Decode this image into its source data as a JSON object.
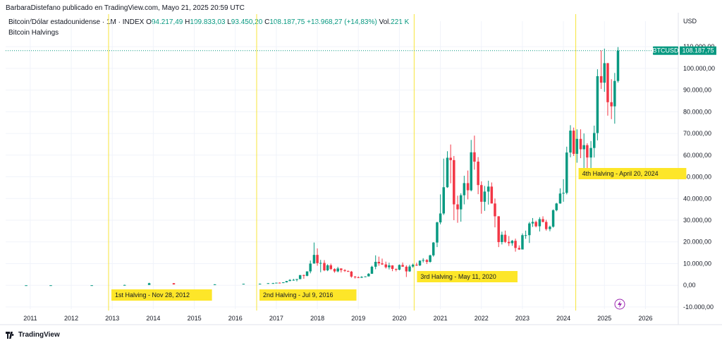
{
  "header": {
    "credit": "BarbaraDistefano publicado en TradingView.com, Mayo 21, 2025 20:59 UTC",
    "symbol_desc": "Bitcoin/Dólar estadounidense · 1M · INDEX",
    "open_label": "O",
    "open_value": "94.217,49",
    "high_label": "H",
    "high_value": "109.833,03",
    "low_label": "L",
    "low_value": "93.450,20",
    "close_label": "C",
    "close_value": "108.187,75",
    "change_value": "+13.968,27 (+14,83%)",
    "vol_label": "Vol.",
    "vol_value": "221 K",
    "indicator": "Bitcoin Halvings",
    "currency": "USD"
  },
  "footer": {
    "brand": "TradingView"
  },
  "colors": {
    "up": "#089981",
    "down": "#f23645",
    "halving_line": "#f7e43a",
    "label_bg": "#fde629",
    "grid": "#f0f3fa"
  },
  "chart_data": {
    "type": "candlestick",
    "x_ticks": [
      "2011",
      "2012",
      "2013",
      "2014",
      "2015",
      "2016",
      "2017",
      "2018",
      "2019",
      "2020",
      "2021",
      "2022",
      "2023",
      "2024",
      "2025",
      "2026"
    ],
    "y_ticks": [
      "-10.000,00",
      "0,00",
      "10.000,00",
      "20.000,00",
      "30.000,00",
      "40.000,00",
      "50.000,00",
      "60.000,00",
      "70.000,00",
      "80.000,00",
      "90.000,00",
      "100.000,00",
      "110.000,00"
    ],
    "y_tick_values": [
      -10000,
      0,
      10000,
      20000,
      30000,
      40000,
      50000,
      60000,
      70000,
      80000,
      90000,
      100000,
      110000
    ],
    "ylim": [
      -11000,
      112000
    ],
    "xlim": [
      2010.4,
      2026.8
    ],
    "last_price_label": "BTCUSD",
    "last_price": "108.187,75",
    "last_price_value": 108187.75,
    "halvings": [
      {
        "date": 2012.91,
        "label": "1st Halving - Nov 28, 2012"
      },
      {
        "date": 2016.52,
        "label": "2nd Halving - Jul 9, 2016"
      },
      {
        "date": 2020.36,
        "label": "3rd Halving - May 11, 2020"
      },
      {
        "date": 2024.3,
        "label": "4th Halving - April 20, 2024"
      }
    ],
    "candles": [
      [
        2010.9,
        0.3,
        0.3,
        0.3,
        0.3
      ],
      [
        2011.5,
        0.3,
        30,
        0.3,
        5
      ],
      [
        2012.5,
        5,
        15,
        4,
        12
      ],
      [
        2013.3,
        13,
        260,
        13,
        140
      ],
      [
        2013.9,
        140,
        1150,
        400,
        950
      ],
      [
        2014.5,
        950,
        1000,
        350,
        380
      ],
      [
        2015.5,
        380,
        480,
        180,
        420
      ],
      [
        2016.2,
        430,
        700,
        400,
        680
      ],
      [
        2016.6,
        650,
        780,
        480,
        700
      ],
      [
        2016.8,
        700,
        980,
        700,
        960
      ],
      [
        2016.92,
        960,
        1100,
        750,
        980
      ],
      [
        2017.0,
        980,
        1200,
        900,
        1180
      ],
      [
        2017.08,
        1180,
        1300,
        900,
        1080
      ],
      [
        2017.17,
        1080,
        1400,
        1000,
        1350
      ],
      [
        2017.25,
        1350,
        2000,
        1300,
        1950
      ],
      [
        2017.33,
        1950,
        2800,
        1900,
        2450
      ],
      [
        2017.42,
        2450,
        2950,
        2100,
        2500
      ],
      [
        2017.5,
        2500,
        2900,
        1800,
        2850
      ],
      [
        2017.58,
        2850,
        4700,
        2750,
        4700
      ],
      [
        2017.67,
        4700,
        4900,
        3000,
        4350
      ],
      [
        2017.75,
        4350,
        6400,
        4150,
        6400
      ],
      [
        2017.83,
        6400,
        11400,
        5500,
        10000
      ],
      [
        2017.92,
        10000,
        19700,
        10000,
        14000
      ],
      [
        2018.0,
        14000,
        17000,
        9000,
        10200
      ],
      [
        2018.08,
        10200,
        11700,
        6000,
        10300
      ],
      [
        2018.17,
        10300,
        11600,
        6500,
        6900
      ],
      [
        2018.25,
        6900,
        9700,
        6500,
        9200
      ],
      [
        2018.33,
        9200,
        10000,
        7000,
        7500
      ],
      [
        2018.42,
        7500,
        7800,
        5800,
        6400
      ],
      [
        2018.5,
        6400,
        8500,
        6000,
        7750
      ],
      [
        2018.58,
        7750,
        7800,
        5900,
        7000
      ],
      [
        2018.67,
        7000,
        7400,
        6150,
        6600
      ],
      [
        2018.75,
        6600,
        6800,
        6100,
        6300
      ],
      [
        2018.83,
        6300,
        6600,
        3500,
        4000
      ],
      [
        2018.92,
        4000,
        4250,
        3100,
        3700
      ],
      [
        2019.0,
        3700,
        4100,
        3300,
        3450
      ],
      [
        2019.08,
        3450,
        4200,
        3400,
        3850
      ],
      [
        2019.17,
        3850,
        4100,
        3700,
        4100
      ],
      [
        2019.25,
        4100,
        5600,
        4050,
        5300
      ],
      [
        2019.33,
        5300,
        9000,
        5300,
        8550
      ],
      [
        2019.42,
        8550,
        13800,
        7400,
        10800
      ],
      [
        2019.5,
        10800,
        13200,
        9000,
        10100
      ],
      [
        2019.58,
        10100,
        12300,
        9400,
        9600
      ],
      [
        2019.67,
        9600,
        10900,
        7700,
        8300
      ],
      [
        2019.75,
        8300,
        10400,
        7300,
        9150
      ],
      [
        2019.83,
        9150,
        9250,
        6500,
        7550
      ],
      [
        2019.92,
        7550,
        7700,
        6400,
        7200
      ],
      [
        2020.0,
        7200,
        9600,
        6900,
        9350
      ],
      [
        2020.08,
        9350,
        10500,
        8500,
        8550
      ],
      [
        2020.17,
        8550,
        9200,
        3800,
        6400
      ],
      [
        2020.25,
        6400,
        9450,
        6150,
        8650
      ],
      [
        2020.33,
        8650,
        10000,
        8100,
        9450
      ],
      [
        2020.42,
        9450,
        10400,
        8900,
        9150
      ],
      [
        2020.5,
        9150,
        11450,
        8900,
        11350
      ],
      [
        2020.58,
        11350,
        12500,
        10500,
        11650
      ],
      [
        2020.67,
        11650,
        12050,
        9800,
        10800
      ],
      [
        2020.75,
        10800,
        14100,
        10400,
        13800
      ],
      [
        2020.83,
        13800,
        19900,
        13200,
        19700
      ],
      [
        2020.92,
        19700,
        29300,
        17600,
        29000
      ],
      [
        2021.0,
        29000,
        41900,
        28100,
        33100
      ],
      [
        2021.08,
        33100,
        58400,
        32400,
        45200
      ],
      [
        2021.17,
        45200,
        61800,
        44900,
        58800
      ],
      [
        2021.25,
        58800,
        64900,
        47000,
        57700
      ],
      [
        2021.33,
        57700,
        59600,
        30000,
        37300
      ],
      [
        2021.42,
        37300,
        41300,
        28800,
        35000
      ],
      [
        2021.5,
        35000,
        42400,
        29300,
        41500
      ],
      [
        2021.58,
        41500,
        50500,
        37300,
        47100
      ],
      [
        2021.67,
        47100,
        52900,
        39600,
        43800
      ],
      [
        2021.75,
        43800,
        67000,
        43300,
        61300
      ],
      [
        2021.83,
        61300,
        69000,
        53300,
        57000
      ],
      [
        2021.92,
        57000,
        59100,
        42000,
        46200
      ],
      [
        2022.0,
        46200,
        47900,
        33000,
        38500
      ],
      [
        2022.08,
        38500,
        45800,
        34300,
        43200
      ],
      [
        2022.17,
        43200,
        48200,
        37200,
        45500
      ],
      [
        2022.25,
        45500,
        47400,
        37700,
        37700
      ],
      [
        2022.33,
        37700,
        40000,
        26700,
        31800
      ],
      [
        2022.42,
        31800,
        31900,
        17600,
        19900
      ],
      [
        2022.5,
        19900,
        24700,
        18800,
        23300
      ],
      [
        2022.58,
        23300,
        25200,
        19500,
        20000
      ],
      [
        2022.67,
        20000,
        22700,
        18100,
        19400
      ],
      [
        2022.75,
        19400,
        20900,
        18200,
        20500
      ],
      [
        2022.83,
        20500,
        21500,
        15500,
        17200
      ],
      [
        2022.92,
        17200,
        18400,
        16300,
        16500
      ],
      [
        2023.0,
        16500,
        23900,
        16500,
        23100
      ],
      [
        2023.08,
        23100,
        25200,
        21400,
        23100
      ],
      [
        2023.17,
        23100,
        29200,
        19500,
        28500
      ],
      [
        2023.25,
        28500,
        31000,
        26900,
        29200
      ],
      [
        2023.33,
        29200,
        29800,
        26700,
        27200
      ],
      [
        2023.42,
        27200,
        31400,
        24800,
        30500
      ],
      [
        2023.5,
        30500,
        31800,
        29000,
        29200
      ],
      [
        2023.58,
        29200,
        30200,
        25200,
        25900
      ],
      [
        2023.67,
        25900,
        27500,
        24900,
        27000
      ],
      [
        2023.75,
        27000,
        35000,
        26600,
        34600
      ],
      [
        2023.83,
        34600,
        38000,
        34100,
        37700
      ],
      [
        2023.92,
        37700,
        44700,
        37600,
        42300
      ],
      [
        2024.0,
        42300,
        48900,
        38500,
        42600
      ],
      [
        2024.08,
        42600,
        63900,
        41900,
        61200
      ],
      [
        2024.17,
        61200,
        73800,
        59000,
        71300
      ],
      [
        2024.25,
        71300,
        72700,
        59600,
        60600
      ],
      [
        2024.33,
        60600,
        71900,
        56500,
        67500
      ],
      [
        2024.42,
        67500,
        71900,
        58600,
        62700
      ],
      [
        2024.5,
        62700,
        70000,
        53500,
        64600
      ],
      [
        2024.58,
        64600,
        65500,
        49000,
        58900
      ],
      [
        2024.67,
        58900,
        66500,
        52600,
        63300
      ],
      [
        2024.75,
        63300,
        73600,
        58900,
        70200
      ],
      [
        2024.83,
        70200,
        99600,
        66800,
        96400
      ],
      [
        2024.92,
        96400,
        108300,
        90500,
        93400
      ],
      [
        2025.0,
        93400,
        109100,
        89200,
        102400
      ],
      [
        2025.08,
        102400,
        102500,
        78200,
        84400
      ],
      [
        2025.17,
        84400,
        95000,
        76600,
        82500
      ],
      [
        2025.25,
        82500,
        97900,
        74500,
        94200
      ],
      [
        2025.33,
        94200,
        109833,
        93450,
        108188
      ]
    ]
  }
}
